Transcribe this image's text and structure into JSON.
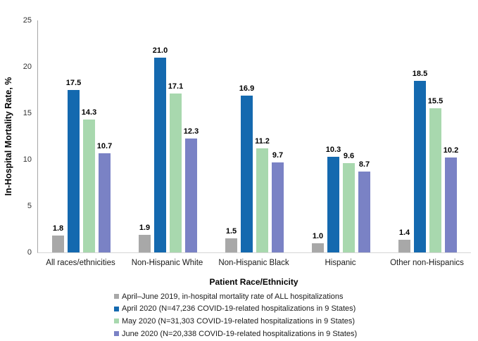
{
  "chart_data": {
    "type": "bar",
    "title": "",
    "ylabel": "In-Hospital Mortality Rate, %",
    "xlabel": "Patient Race/Ethnicity",
    "ylim": [
      0,
      25
    ],
    "yticks": [
      0,
      5,
      10,
      15,
      20,
      25
    ],
    "grid": false,
    "legend_position": "bottom",
    "value_labels": true,
    "value_label_format": "one-decimal",
    "categories": [
      "All races/ethnicities",
      "Non-Hispanic White",
      "Non-Hispanic Black",
      "Hispanic",
      "Other non-Hispanics"
    ],
    "series": [
      {
        "name": "April–June 2019, in-hospital mortality rate of ALL hospitalizations",
        "color": "#a8a8a8",
        "values": [
          1.8,
          1.9,
          1.5,
          1.0,
          1.4
        ]
      },
      {
        "name": "April 2020 (N=47,236 COVID-19-related hospitalizations in 9 States)",
        "color": "#1469af",
        "values": [
          17.5,
          21.0,
          16.9,
          10.3,
          18.5
        ]
      },
      {
        "name": "May 2020 (N=31,303 COVID-19-related hospitalizations in 9 States)",
        "color": "#a8d8ae",
        "values": [
          14.3,
          17.1,
          11.2,
          9.6,
          15.5
        ]
      },
      {
        "name": "June 2020 (N=20,338 COVID-19-related hospitalizations in 9 States)",
        "color": "#7a82c5",
        "values": [
          10.7,
          12.3,
          9.7,
          8.7,
          10.2
        ]
      }
    ]
  }
}
